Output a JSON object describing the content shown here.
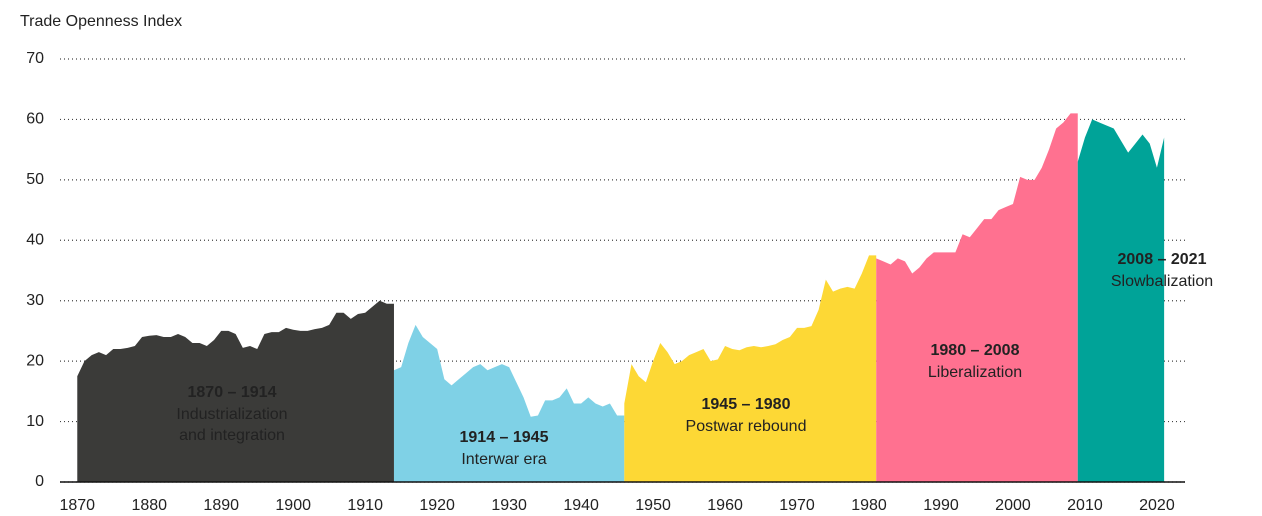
{
  "chart_data": {
    "type": "area",
    "y_label": "Trade Openness Index",
    "xlim": [
      1867.6,
      2023.9
    ],
    "xticks": [
      1870,
      1880,
      1890,
      1900,
      1910,
      1920,
      1930,
      1940,
      1950,
      1960,
      1970,
      1980,
      1990,
      2000,
      2010,
      2020
    ],
    "ylim": [
      0,
      70
    ],
    "yticks": [
      0,
      10,
      20,
      30,
      40,
      50,
      60,
      70
    ],
    "grid": true,
    "series": [
      {
        "name": "1870 – 1914",
        "description": [
          "Industrialization",
          "and integration"
        ],
        "color": "#3b3b39",
        "x": [
          1870,
          1871,
          1872,
          1873,
          1874,
          1875,
          1876,
          1877,
          1878,
          1879,
          1880,
          1881,
          1882,
          1883,
          1884,
          1885,
          1886,
          1887,
          1888,
          1889,
          1890,
          1891,
          1892,
          1893,
          1894,
          1895,
          1896,
          1897,
          1898,
          1899,
          1900,
          1901,
          1902,
          1903,
          1904,
          1905,
          1906,
          1907,
          1908,
          1909,
          1910,
          1911,
          1912,
          1913
        ],
        "values": [
          17.5,
          20,
          21,
          21.5,
          21,
          22,
          22,
          22.2,
          22.5,
          24,
          24.2,
          24.3,
          24,
          24,
          24.5,
          24,
          23,
          23,
          22.5,
          23.5,
          25,
          25,
          24.5,
          22.2,
          22.5,
          22,
          24.5,
          24.8,
          24.8,
          25.5,
          25.2,
          25,
          25,
          25.3,
          25.5,
          26,
          28,
          28,
          27,
          27.8,
          28,
          29,
          30,
          29.5
        ]
      },
      {
        "name": "1914 – 1945",
        "description": [
          "Interwar era"
        ],
        "color": "#7fd1e6",
        "x": [
          1914,
          1915,
          1916,
          1917,
          1918,
          1919,
          1920,
          1921,
          1922,
          1923,
          1924,
          1925,
          1926,
          1927,
          1928,
          1929,
          1930,
          1931,
          1932,
          1933,
          1934,
          1935,
          1936,
          1937,
          1938,
          1939,
          1940,
          1941,
          1942,
          1943,
          1944,
          1945
        ],
        "values": [
          18.5,
          19,
          23,
          26,
          24,
          23,
          22,
          17,
          16,
          17,
          18,
          19,
          19.5,
          18.5,
          19,
          19.5,
          19,
          16.5,
          14,
          10.8,
          11,
          13.5,
          13.5,
          14,
          15.5,
          13,
          13,
          14,
          13,
          12.5,
          13,
          11
        ]
      },
      {
        "name": "1945 – 1980",
        "description": [
          "Postwar rebound"
        ],
        "color": "#fdd835",
        "x": [
          1946,
          1947,
          1948,
          1949,
          1950,
          1951,
          1952,
          1953,
          1954,
          1955,
          1956,
          1957,
          1958,
          1959,
          1960,
          1961,
          1962,
          1963,
          1964,
          1965,
          1966,
          1967,
          1968,
          1969,
          1970,
          1971,
          1972,
          1973,
          1974,
          1975,
          1976,
          1977,
          1978,
          1979,
          1980
        ],
        "values": [
          13,
          19.5,
          17.5,
          16.5,
          20,
          23,
          21.5,
          19.5,
          20,
          21,
          21.5,
          22,
          20,
          20.3,
          22.5,
          22,
          21.8,
          22.3,
          22.5,
          22.3,
          22.5,
          22.8,
          23.5,
          24,
          25.5,
          25.5,
          25.8,
          28.5,
          33.5,
          31.5,
          32,
          32.3,
          32,
          34.5,
          37.5
        ]
      },
      {
        "name": "1980 – 2008",
        "description": [
          "Liberalization"
        ],
        "color": "#ff7190",
        "x": [
          1981,
          1982,
          1983,
          1984,
          1985,
          1986,
          1987,
          1988,
          1989,
          1990,
          1991,
          1992,
          1993,
          1994,
          1995,
          1996,
          1997,
          1998,
          1999,
          2000,
          2001,
          2002,
          2003,
          2004,
          2005,
          2006,
          2007,
          2008
        ],
        "values": [
          37,
          36.5,
          36,
          37,
          36.5,
          34.5,
          35.5,
          37,
          38,
          38,
          38,
          38,
          41,
          40.5,
          42,
          43.5,
          43.5,
          45,
          45.5,
          46,
          50.5,
          50,
          50,
          52,
          55,
          58.5,
          59.5,
          61
        ]
      },
      {
        "name": "2008 – 2021",
        "description": [
          "Slowbalization"
        ],
        "color": "#00a398",
        "x": [
          2009,
          2010,
          2011,
          2012,
          2013,
          2014,
          2015,
          2016,
          2017,
          2018,
          2019,
          2020,
          2021
        ],
        "values": [
          53,
          57,
          60,
          59.5,
          59,
          58.5,
          56.5,
          54.5,
          56,
          57.5,
          56,
          52,
          57
        ]
      }
    ]
  }
}
